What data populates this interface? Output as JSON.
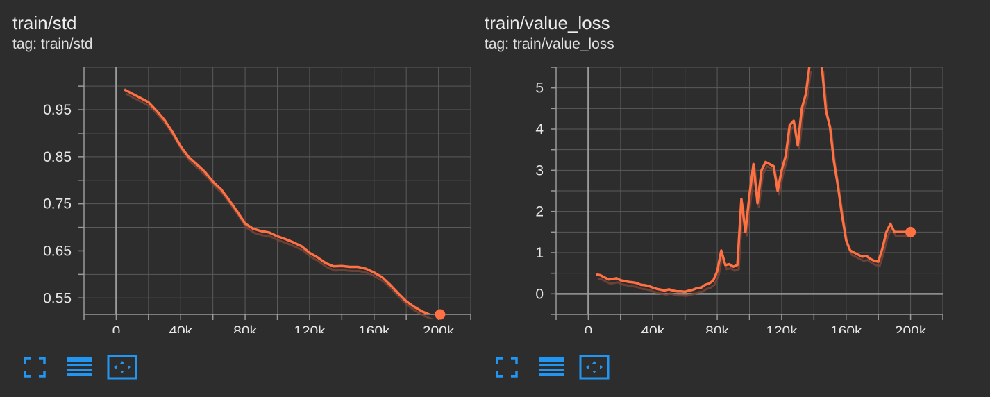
{
  "colors": {
    "background": "#2d2d2d",
    "grid": "#5a5a5a",
    "axis": "#9a9a9a",
    "series": "#ff7043",
    "series_raw": "#7a4537",
    "tick_text": "#e6e6e6",
    "icon": "#2196f3"
  },
  "icons": [
    "fullscreen-icon",
    "toggle-lines-icon",
    "fit-domain-icon"
  ],
  "charts": [
    {
      "title": "train/std",
      "tag": "tag: train/std"
    },
    {
      "title": "train/value_loss",
      "tag": "tag: train/value_loss"
    }
  ],
  "chart_data": [
    {
      "type": "line",
      "title": "train/std",
      "xlabel": "",
      "ylabel": "",
      "xlim": [
        -20000,
        220000
      ],
      "ylim": [
        0.515,
        1.04
      ],
      "x_ticks": [
        0,
        40000,
        80000,
        120000,
        160000,
        200000
      ],
      "x_tick_labels": [
        "0",
        "40k",
        "80k",
        "120k",
        "160k",
        "200k"
      ],
      "y_ticks": [
        0.55,
        0.65,
        0.75,
        0.85,
        0.95
      ],
      "y_tick_labels": [
        "0.55",
        "0.65",
        "0.75",
        "0.85",
        "0.95"
      ],
      "grid": true,
      "series": [
        {
          "x": [
            5000,
            10000,
            15000,
            20000,
            25000,
            30000,
            35000,
            40000,
            45000,
            50000,
            55000,
            60000,
            65000,
            70000,
            75000,
            80000,
            85000,
            90000,
            95000,
            100000,
            105000,
            110000,
            115000,
            120000,
            125000,
            130000,
            135000,
            140000,
            145000,
            150000,
            155000,
            160000,
            165000,
            170000,
            175000,
            180000,
            185000,
            190000,
            195000,
            200000
          ],
          "values": [
            0.993,
            0.984,
            0.975,
            0.966,
            0.948,
            0.928,
            0.902,
            0.872,
            0.849,
            0.834,
            0.818,
            0.797,
            0.781,
            0.758,
            0.734,
            0.708,
            0.697,
            0.692,
            0.689,
            0.681,
            0.675,
            0.668,
            0.66,
            0.646,
            0.636,
            0.624,
            0.617,
            0.618,
            0.616,
            0.616,
            0.612,
            0.604,
            0.594,
            0.578,
            0.56,
            0.543,
            0.531,
            0.521,
            0.514,
            0.51
          ]
        }
      ],
      "last_point": {
        "x": 201000,
        "y": 0.51
      }
    },
    {
      "type": "line",
      "title": "train/value_loss",
      "xlabel": "",
      "ylabel": "",
      "xlim": [
        -20000,
        220000
      ],
      "ylim": [
        -0.5,
        5.5
      ],
      "x_ticks": [
        0,
        40000,
        80000,
        120000,
        160000,
        200000
      ],
      "x_tick_labels": [
        "0",
        "40k",
        "80k",
        "120k",
        "160k",
        "200k"
      ],
      "y_ticks": [
        0,
        1,
        2,
        3,
        4,
        5
      ],
      "y_tick_labels": [
        "0",
        "1",
        "2",
        "3",
        "4",
        "5"
      ],
      "grid": true,
      "series": [
        {
          "x": [
            5000,
            7500,
            10000,
            12500,
            15000,
            17500,
            20000,
            22500,
            25000,
            27500,
            30000,
            32500,
            35000,
            37500,
            40000,
            42500,
            45000,
            47500,
            50000,
            52500,
            55000,
            57500,
            60000,
            62500,
            65000,
            67500,
            70000,
            72500,
            75000,
            77500,
            80000,
            82500,
            85000,
            87500,
            90000,
            92500,
            95000,
            97500,
            100000,
            102500,
            105000,
            107500,
            110000,
            112500,
            115000,
            117500,
            120000,
            122500,
            125000,
            127500,
            130000,
            132500,
            135000,
            137500,
            140000,
            142500,
            145000,
            147500,
            150000,
            152500,
            155000,
            157500,
            160000,
            162500,
            165000,
            167500,
            170000,
            172500,
            175000,
            177500,
            180000,
            182500,
            185000,
            187500,
            190000,
            192500,
            195000,
            197500,
            200000
          ],
          "values": [
            0.47,
            0.45,
            0.4,
            0.35,
            0.36,
            0.38,
            0.33,
            0.31,
            0.29,
            0.28,
            0.26,
            0.22,
            0.21,
            0.19,
            0.15,
            0.12,
            0.1,
            0.08,
            0.11,
            0.08,
            0.06,
            0.06,
            0.05,
            0.08,
            0.1,
            0.14,
            0.15,
            0.22,
            0.25,
            0.32,
            0.55,
            1.05,
            0.7,
            0.72,
            0.66,
            0.7,
            2.3,
            1.5,
            2.4,
            3.15,
            2.2,
            3.0,
            3.2,
            3.15,
            3.1,
            2.5,
            3.0,
            3.35,
            4.1,
            4.2,
            3.6,
            4.5,
            4.85,
            5.6,
            5.8,
            5.6,
            5.5,
            4.45,
            4.05,
            3.2,
            2.6,
            1.9,
            1.3,
            1.05,
            1.0,
            0.95,
            0.9,
            0.92,
            0.85,
            0.8,
            0.78,
            1.1,
            1.5,
            1.7,
            1.5,
            1.5,
            1.5,
            1.5,
            1.5
          ]
        }
      ],
      "last_point": {
        "x": 200000,
        "y": 1.5
      }
    }
  ]
}
